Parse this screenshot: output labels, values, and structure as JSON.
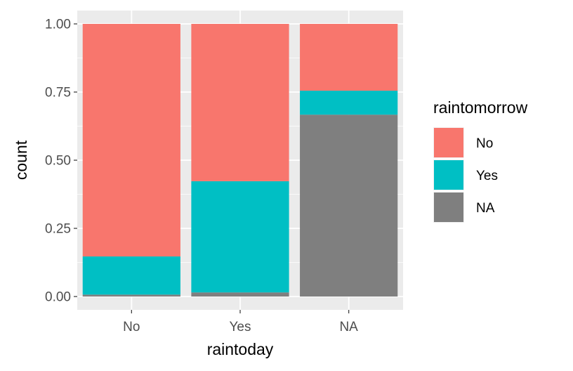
{
  "chart_data": {
    "type": "bar",
    "stacked": true,
    "normalized": true,
    "categories": [
      "No",
      "Yes",
      "NA"
    ],
    "xlabel": "raintoday",
    "ylabel": "count",
    "ylim": [
      0,
      1
    ],
    "yticks": [
      "0.00",
      "0.25",
      "0.50",
      "0.75",
      "1.00"
    ],
    "ytick_values": [
      0,
      0.25,
      0.5,
      0.75,
      1.0
    ],
    "grid": true,
    "legend": {
      "title": "raintomorrow",
      "position": "right",
      "entries": [
        "No",
        "Yes",
        "NA"
      ]
    },
    "series": [
      {
        "name": "No",
        "color": "#F8766D",
        "values": [
          0.853,
          0.577,
          0.245
        ]
      },
      {
        "name": "Yes",
        "color": "#00BFC4",
        "values": [
          0.14,
          0.408,
          0.088
        ]
      },
      {
        "name": "NA",
        "color": "#7F7F7F",
        "values": [
          0.007,
          0.015,
          0.667
        ]
      }
    ],
    "stack_order": [
      "NA",
      "Yes",
      "No"
    ]
  }
}
